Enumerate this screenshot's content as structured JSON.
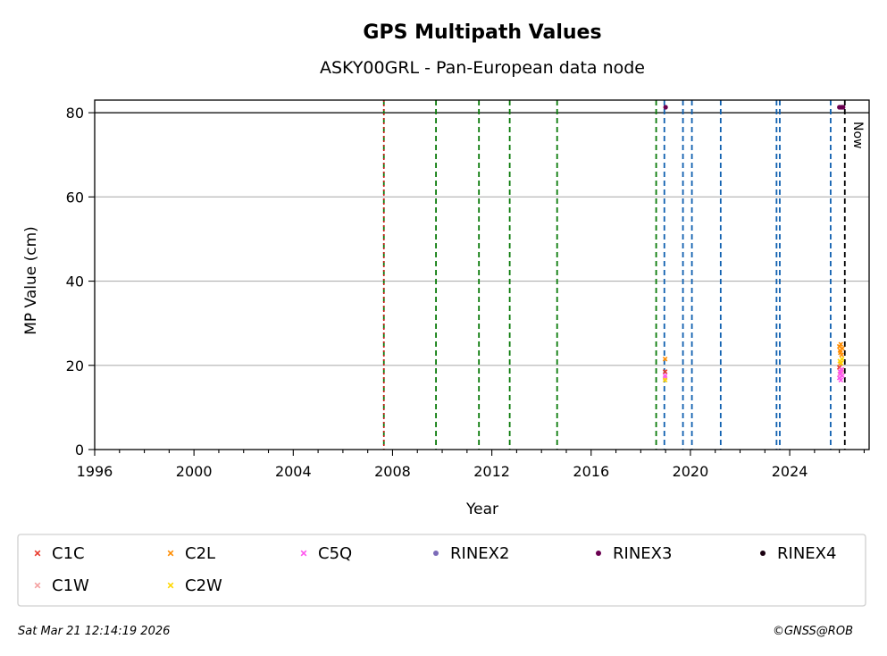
{
  "chart_data": {
    "type": "scatter",
    "title": "GPS Multipath Values",
    "subtitle": "ASKY00GRL - Pan-European data node",
    "xlabel": "Year",
    "ylabel": "MP Value (cm)",
    "xlim": [
      1996,
      2027.2
    ],
    "ylim": [
      0,
      83
    ],
    "x_ticks": [
      1996,
      2000,
      2004,
      2008,
      2012,
      2016,
      2020,
      2024
    ],
    "x_tick_labels": [
      "1996",
      "2000",
      "2004",
      "2008",
      "2012",
      "2016",
      "2020",
      "2024"
    ],
    "y_ticks": [
      0,
      20,
      40,
      60,
      80
    ],
    "y_tick_labels": [
      "0",
      "20",
      "40",
      "60",
      "80"
    ],
    "grid": "horizontal",
    "reference_line_y": 80,
    "now_year": 2026.22,
    "now_label": "Now",
    "vlines_red": [
      2007.65
    ],
    "vlines_green": [
      2007.65,
      2009.75,
      2011.48,
      2012.72,
      2014.63,
      2018.62
    ],
    "vlines_blue": [
      2018.95,
      2019.7,
      2020.06,
      2021.22,
      2023.47,
      2023.6,
      2025.65
    ],
    "legend_position": "bottom",
    "series": [
      {
        "name": "C1C",
        "marker": "x",
        "color": "#e8392b",
        "points": [
          [
            2018.98,
            18.5
          ],
          [
            2026.0,
            19.5
          ],
          [
            2026.05,
            20.5
          ],
          [
            2026.1,
            19.0
          ]
        ]
      },
      {
        "name": "C1W",
        "marker": "x",
        "color": "#f4a0a0",
        "points": [
          [
            2018.98,
            17.0
          ],
          [
            2026.02,
            18.0
          ],
          [
            2026.08,
            18.5
          ]
        ]
      },
      {
        "name": "C2L",
        "marker": "x",
        "color": "#ff8c00",
        "points": [
          [
            2018.98,
            21.5
          ],
          [
            2026.0,
            24.5
          ],
          [
            2026.03,
            23.5
          ],
          [
            2026.06,
            25.0
          ],
          [
            2026.09,
            22.5
          ],
          [
            2026.12,
            24.0
          ],
          [
            2026.04,
            23.0
          ]
        ]
      },
      {
        "name": "C2W",
        "marker": "x",
        "color": "#ffd700",
        "points": [
          [
            2018.98,
            16.5
          ],
          [
            2026.02,
            21.0
          ],
          [
            2026.07,
            20.5
          ],
          [
            2026.11,
            21.5
          ]
        ]
      },
      {
        "name": "C5Q",
        "marker": "x",
        "color": "#ff55ee",
        "points": [
          [
            2018.98,
            17.5
          ],
          [
            2026.0,
            17.0
          ],
          [
            2026.03,
            18.5
          ],
          [
            2026.06,
            16.5
          ],
          [
            2026.09,
            19.0
          ],
          [
            2026.12,
            17.5
          ],
          [
            2026.05,
            18.0
          ]
        ]
      },
      {
        "name": "RINEX2",
        "marker": "o",
        "color": "#7b6bb8",
        "points": []
      },
      {
        "name": "RINEX3",
        "marker": "o",
        "color": "#6a0050",
        "points": [
          [
            2019.0,
            81.3
          ],
          [
            2026.0,
            81.3
          ],
          [
            2026.05,
            81.3
          ],
          [
            2026.1,
            81.3
          ],
          [
            2026.15,
            81.3
          ]
        ]
      },
      {
        "name": "RINEX4",
        "marker": "o",
        "color": "#1a0010",
        "points": []
      }
    ]
  },
  "footer": {
    "timestamp": "Sat Mar 21 12:14:19 2026",
    "credit": "©GNSS@ROB"
  }
}
